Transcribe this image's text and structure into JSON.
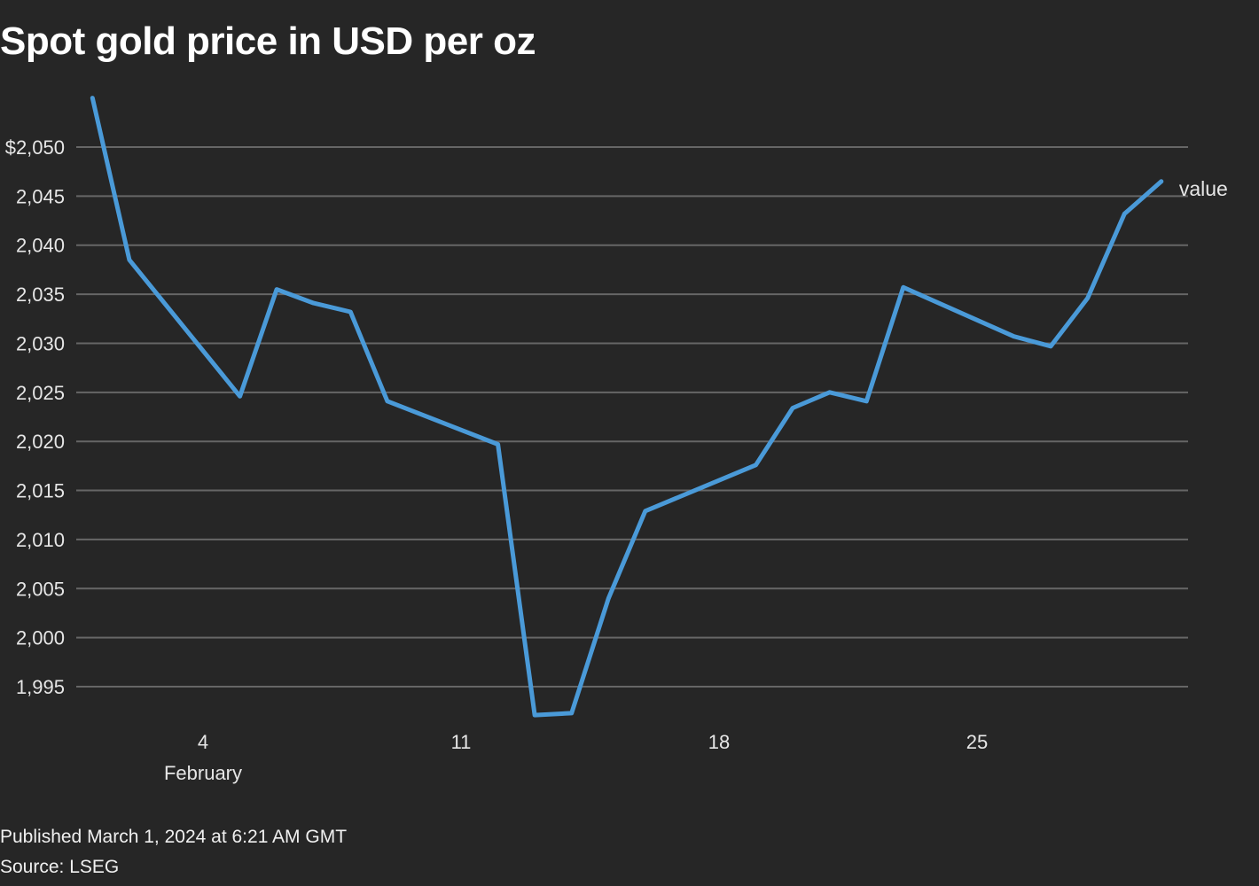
{
  "chart_data": {
    "type": "line",
    "title": "Spot gold price in USD per oz",
    "xlabel": "",
    "ylabel": "",
    "x_ticks": [
      {
        "date": "2024-02-04",
        "label": "4",
        "sublabel": "February"
      },
      {
        "date": "2024-02-11",
        "label": "11"
      },
      {
        "date": "2024-02-18",
        "label": "18"
      },
      {
        "date": "2024-02-25",
        "label": "25"
      }
    ],
    "y_ticks": [
      1995,
      2000,
      2005,
      2010,
      2015,
      2020,
      2025,
      2030,
      2035,
      2040,
      2045,
      2050
    ],
    "y_tick_labels": [
      "1,995",
      "2,000",
      "2,005",
      "2,010",
      "2,015",
      "2,020",
      "2,025",
      "2,030",
      "2,035",
      "2,040",
      "2,045",
      "$2,050"
    ],
    "grid": "horizontal",
    "line_color": "#4a9ad8",
    "series": [
      {
        "name": "value",
        "x": [
          "2024-02-01",
          "2024-02-02",
          "2024-02-05",
          "2024-02-06",
          "2024-02-07",
          "2024-02-08",
          "2024-02-09",
          "2024-02-12",
          "2024-02-13",
          "2024-02-14",
          "2024-02-15",
          "2024-02-16",
          "2024-02-19",
          "2024-02-20",
          "2024-02-21",
          "2024-02-22",
          "2024-02-23",
          "2024-02-26",
          "2024-02-27",
          "2024-02-28",
          "2024-02-29",
          "2024-03-01"
        ],
        "values": [
          2055.0,
          2038.5,
          2024.6,
          2035.5,
          2034.1,
          2033.2,
          2024.1,
          2019.7,
          1992.1,
          1992.3,
          2004.0,
          2012.9,
          2017.6,
          2023.4,
          2025.0,
          2024.1,
          2035.7,
          2030.7,
          2029.7,
          2034.6,
          2043.2,
          2046.5
        ]
      }
    ]
  },
  "footer": {
    "published": "Published March 1, 2024 at 6:21 AM GMT",
    "source": "Source: LSEG"
  }
}
